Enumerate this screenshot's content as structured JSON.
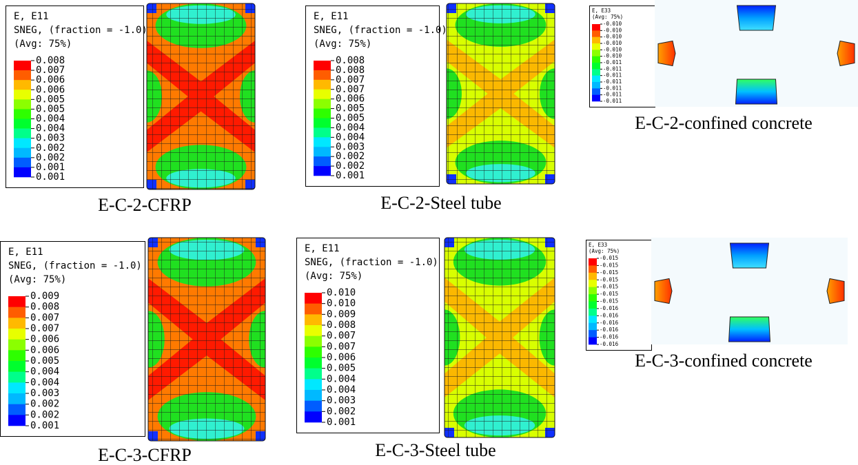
{
  "panels": [
    {
      "legend": {
        "lines": [
          "E, E11",
          "SNEG, (fraction = -1.0)",
          "(Avg: 75%)"
        ],
        "values": [
          "0.008",
          "0.007",
          "0.006",
          "0.006",
          "0.005",
          "0.005",
          "0.004",
          "0.004",
          "0.003",
          "0.002",
          "0.002",
          "0.001",
          "0.001"
        ]
      },
      "caption": "E-C-2-CFRP"
    },
    {
      "legend": {
        "lines": [
          "E, E11",
          "SNEG, (fraction = -1.0)",
          "(Avg: 75%)"
        ],
        "values": [
          "0.008",
          "0.008",
          "0.007",
          "0.007",
          "0.006",
          "0.005",
          "0.005",
          "0.004",
          "0.004",
          "0.003",
          "0.002",
          "0.002",
          "0.001"
        ]
      },
      "caption": "E-C-2-Steel tube"
    },
    {
      "legend": {
        "lines": [
          "E, E33",
          "(Avg: 75%)"
        ],
        "values": [
          "-0.010",
          "-0.010",
          "-0.010",
          "-0.010",
          "-0.010",
          "-0.010",
          "-0.011",
          "-0.011",
          "-0.011",
          "-0.011",
          "-0.011",
          "-0.011",
          "-0.011"
        ]
      },
      "caption": "E-C-2-confined concrete"
    },
    {
      "legend": {
        "lines": [
          "E, E11",
          "SNEG, (fraction = -1.0)",
          "(Avg: 75%)"
        ],
        "values": [
          "0.009",
          "0.008",
          "0.007",
          "0.007",
          "0.006",
          "0.006",
          "0.005",
          "0.004",
          "0.004",
          "0.003",
          "0.002",
          "0.002",
          "0.001"
        ]
      },
      "caption": "E-C-3-CFRP"
    },
    {
      "legend": {
        "lines": [
          "E, E11",
          "SNEG, (fraction = -1.0)",
          "(Avg: 75%)"
        ],
        "values": [
          "0.010",
          "0.010",
          "0.009",
          "0.008",
          "0.007",
          "0.007",
          "0.006",
          "0.005",
          "0.004",
          "0.004",
          "0.003",
          "0.002",
          "0.001"
        ]
      },
      "caption": "E-C-3-Steel tube"
    },
    {
      "legend": {
        "lines": [
          "E, E33",
          "(Avg: 75%)"
        ],
        "values": [
          "-0.015",
          "-0.015",
          "-0.015",
          "-0.015",
          "-0.015",
          "-0.015",
          "-0.015",
          "-0.016",
          "-0.016",
          "-0.016",
          "-0.016",
          "-0.016",
          "-0.016"
        ]
      },
      "caption": "E-C-3-confined concrete"
    }
  ]
}
